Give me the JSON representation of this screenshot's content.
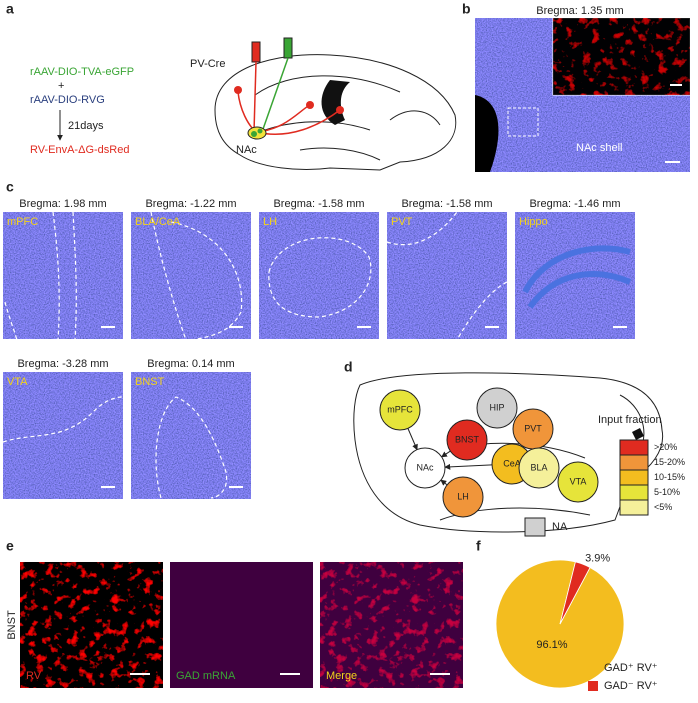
{
  "panel_labels": [
    "a",
    "b",
    "c",
    "d",
    "e",
    "f"
  ],
  "panel_a": {
    "vector1": "rAAV-DIO-TVA-eGFP",
    "plus": "+",
    "vector2": "rAAV-DIO-RVG",
    "interval": "21days",
    "vector3": "RV-EnvA-ΔG-dsRed",
    "mouse_line": "PV-Cre",
    "target": "NAc"
  },
  "panel_b": {
    "bregma": "Bregma: 1.35 mm",
    "region": "NAc shell"
  },
  "panel_c": {
    "images": [
      {
        "bregma": "Bregma: 1.98 mm",
        "region": "mPFC"
      },
      {
        "bregma": "Bregma: -1.22 mm",
        "region": "BLA/CeA"
      },
      {
        "bregma": "Bregma: -1.58 mm",
        "region": "LH"
      },
      {
        "bregma": "Bregma: -1.58 mm",
        "region": "PVT"
      },
      {
        "bregma": "Bregma: -1.46 mm",
        "region": "Hippo"
      },
      {
        "bregma": "Bregma: -3.28 mm",
        "region": "VTA"
      },
      {
        "bregma": "Bregma: 0.14 mm",
        "region": "BNST"
      }
    ]
  },
  "panel_d": {
    "nodes": [
      {
        "label": "mPFC",
        "color": "#e6e43a"
      },
      {
        "label": "HIP",
        "color": "#d0d0d0"
      },
      {
        "label": "PVT",
        "color": "#f0953a"
      },
      {
        "label": "BNST",
        "color": "#e02b20"
      },
      {
        "label": "NAc",
        "color": "#ffffff"
      },
      {
        "label": "CeA",
        "color": "#f3bd1f"
      },
      {
        "label": "BLA",
        "color": "#f5f09a"
      },
      {
        "label": "VTA",
        "color": "#e6e43a"
      },
      {
        "label": "LH",
        "color": "#f0953a"
      }
    ],
    "legend_title": "Input fraction",
    "legend": [
      {
        "label": ">20%",
        "color": "#e02b20"
      },
      {
        "label": "15-20%",
        "color": "#f0953a"
      },
      {
        "label": "10-15%",
        "color": "#f3bd1f"
      },
      {
        "label": "5-10%",
        "color": "#e6e43a"
      },
      {
        "label": "<5%",
        "color": "#f5f09a"
      }
    ],
    "na": {
      "label": "NA",
      "color": "#d0d0d0"
    }
  },
  "panel_e": {
    "row_label": "BNST",
    "images": [
      "RV",
      "GAD mRNA",
      "Merge"
    ]
  },
  "chart_data": {
    "type": "pie",
    "categories": [
      "GAD⁺ RV⁺",
      "GAD⁻ RV⁺"
    ],
    "values": [
      96.1,
      3.9
    ],
    "value_labels": [
      "96.1%",
      "3.9%"
    ],
    "colors": [
      "#f3bd1f",
      "#e02b20"
    ]
  }
}
